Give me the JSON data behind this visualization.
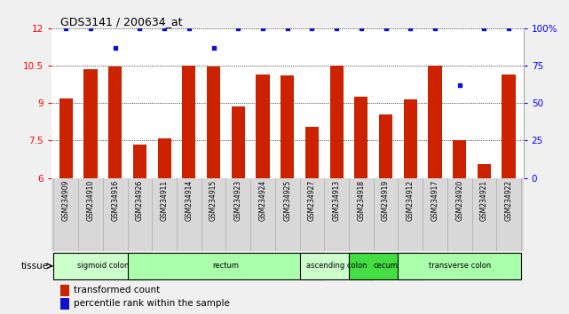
{
  "title": "GDS3141 / 200634_at",
  "samples": [
    "GSM234909",
    "GSM234910",
    "GSM234916",
    "GSM234926",
    "GSM234911",
    "GSM234914",
    "GSM234915",
    "GSM234923",
    "GSM234924",
    "GSM234925",
    "GSM234927",
    "GSM234913",
    "GSM234918",
    "GSM234919",
    "GSM234912",
    "GSM234917",
    "GSM234920",
    "GSM234921",
    "GSM234922"
  ],
  "bar_values": [
    9.2,
    10.35,
    10.45,
    7.35,
    7.6,
    10.5,
    10.45,
    8.85,
    10.15,
    10.1,
    8.05,
    10.5,
    9.25,
    8.55,
    9.15,
    10.5,
    7.5,
    6.55,
    10.15
  ],
  "percentile_values": [
    100,
    100,
    87,
    100,
    100,
    100,
    87,
    100,
    100,
    100,
    100,
    100,
    100,
    100,
    100,
    100,
    62,
    100,
    100
  ],
  "ylim": [
    6,
    12
  ],
  "yticks": [
    6,
    7.5,
    9,
    10.5,
    12
  ],
  "ytick_labels": [
    "6",
    "7.5",
    "9",
    "10.5",
    "12"
  ],
  "right_yticks": [
    0,
    25,
    50,
    75,
    100
  ],
  "right_ytick_labels": [
    "0",
    "25",
    "50",
    "75",
    "100%"
  ],
  "bar_color": "#cc2200",
  "dot_color": "#1111cc",
  "tissue_groups": [
    {
      "label": "sigmoid colon",
      "start": 0,
      "end": 3,
      "color": "#ccffcc"
    },
    {
      "label": "rectum",
      "start": 3,
      "end": 10,
      "color": "#aaffaa"
    },
    {
      "label": "ascending colon",
      "start": 10,
      "end": 12,
      "color": "#ccffcc"
    },
    {
      "label": "cecum",
      "start": 12,
      "end": 14,
      "color": "#44dd44"
    },
    {
      "label": "transverse colon",
      "start": 14,
      "end": 18,
      "color": "#aaffaa"
    }
  ],
  "xlabel_tissue": "tissue",
  "legend_bar_label": "transformed count",
  "legend_dot_label": "percentile rank within the sample",
  "plot_bg": "#ffffff",
  "label_bg": "#d8d8d8"
}
